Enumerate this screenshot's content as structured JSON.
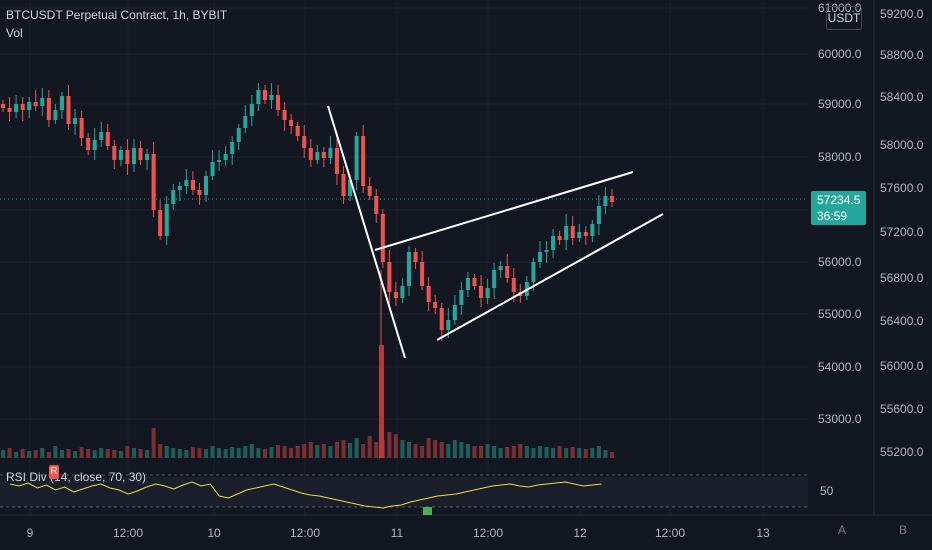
{
  "header": {
    "symbol": "BTCUSDT Perpetual Contract, 1h, BYBIT",
    "volume_label": "Vol",
    "currency": "USDT"
  },
  "indicator": {
    "legend": "RSI Div (14, close, 70, 30)",
    "badge": "R",
    "value_label": "50"
  },
  "price_axis_left": [
    "61000.0",
    "60000.0",
    "59000.0",
    "58000.0",
    "57000.0",
    "56000.0",
    "55000.0",
    "54000.0",
    "53000.0"
  ],
  "price_axis_right": [
    "59200.0",
    "58800.0",
    "58400.0",
    "58000.0",
    "57600.0",
    "57200.0",
    "56800.0",
    "56400.0",
    "56000.0",
    "55600.0",
    "55200.0"
  ],
  "current_price": {
    "value": "57234.5",
    "countdown": "36:59"
  },
  "time_axis": [
    "9",
    "12:00",
    "10",
    "12:00",
    "11",
    "12:00",
    "12",
    "12:00",
    "13"
  ],
  "scale_buttons": {
    "a": "A",
    "b": "B"
  },
  "colors": {
    "background": "#131722",
    "up": "#26a69a",
    "down": "#ef5350",
    "rsi_line": "#e8e03a",
    "trendline": "#ffffff"
  }
}
